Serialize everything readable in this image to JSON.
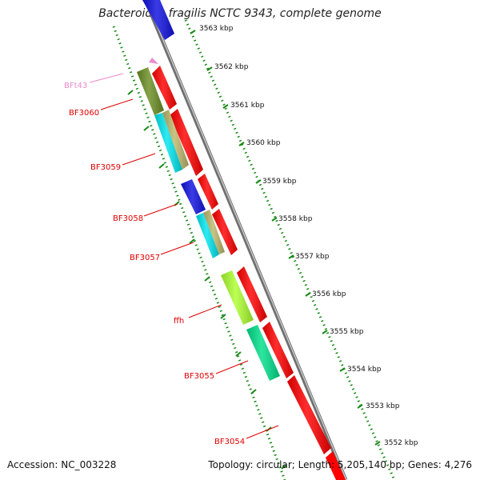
{
  "title": "Bacteroides fragilis NCTC 9343, complete genome",
  "footer": {
    "accession": "Accession: NC_003228",
    "topology": "Topology: circular; Length: 5,205,140 bp; Genes: 4,276"
  },
  "ruler": {
    "ticks": [
      "3563 kbp",
      "3562 kbp",
      "3561 kbp",
      "3560 kbp",
      "3559 kbp",
      "3558 kbp",
      "3557 kbp",
      "3556 kbp",
      "3555 kbp",
      "3554 kbp",
      "3553 kbp",
      "3552 kbp"
    ]
  },
  "genes": [
    {
      "label": "BFt43",
      "color": "#e88ccc"
    },
    {
      "label": "BF3060",
      "color": "#dd0000"
    },
    {
      "label": "BF3059",
      "color": "#dd0000"
    },
    {
      "label": "BF3058",
      "color": "#dd0000"
    },
    {
      "label": "BF3057",
      "color": "#dd0000"
    },
    {
      "label": "ffh",
      "color": "#dd0000"
    },
    {
      "label": "BF3055",
      "color": "#dd0000"
    },
    {
      "label": "BF3054",
      "color": "#dd0000"
    }
  ],
  "colors": {
    "backbone": "#888888",
    "ruler": "#1a8a1a",
    "strand": "#ff0000",
    "cog_olive": "#6b8e23",
    "cog_cyan": "#00e5ee",
    "cog_tan": "#bdb76b",
    "cog_blue": "#1010e0",
    "cog_lime": "#adff2f",
    "cog_spring": "#00e08a"
  }
}
